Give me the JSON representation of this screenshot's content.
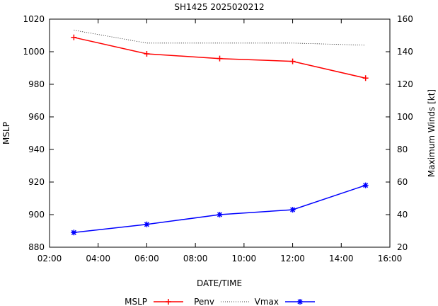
{
  "chart_data": {
    "type": "line",
    "title": "SH1425 2025020212",
    "xlabel": "DATE/TIME",
    "ylabel_left": "MSLP",
    "ylabel_right": "Maximum Winds [kt]",
    "x_ticks": [
      "02:00",
      "04:00",
      "06:00",
      "08:00",
      "10:00",
      "12:00",
      "14:00",
      "16:00"
    ],
    "x_tick_hours": [
      2,
      4,
      6,
      8,
      10,
      12,
      14,
      16
    ],
    "xlim_hours": [
      2,
      16
    ],
    "y_left_ticks": [
      880,
      900,
      920,
      940,
      960,
      980,
      1000,
      1020
    ],
    "ylim_left": [
      880,
      1020
    ],
    "y_right_ticks": [
      20,
      40,
      60,
      80,
      100,
      120,
      140,
      160
    ],
    "ylim_right": [
      20,
      160
    ],
    "x_hours": [
      3,
      6,
      9,
      12,
      15
    ],
    "series": [
      {
        "name": "MSLP",
        "axis": "left",
        "style": "line-plus",
        "color": "#ff0000",
        "values": [
          1008.8,
          998.7,
          995.8,
          994.1,
          983.8
        ]
      },
      {
        "name": "Penv",
        "axis": "left",
        "style": "dotted",
        "color": "#000000",
        "values": [
          1013.2,
          1005.3,
          1005.3,
          1005.3,
          1004.0
        ]
      },
      {
        "name": "Vmax",
        "axis": "right",
        "style": "line-star",
        "color": "#0000ff",
        "values": [
          29,
          34,
          40,
          43,
          58
        ]
      }
    ],
    "legend": {
      "placement": "bottom",
      "items": [
        {
          "label": "MSLP",
          "series": "MSLP"
        },
        {
          "label": "Penv",
          "series": "Penv"
        },
        {
          "label": "Vmax",
          "series": "Vmax"
        }
      ]
    }
  }
}
